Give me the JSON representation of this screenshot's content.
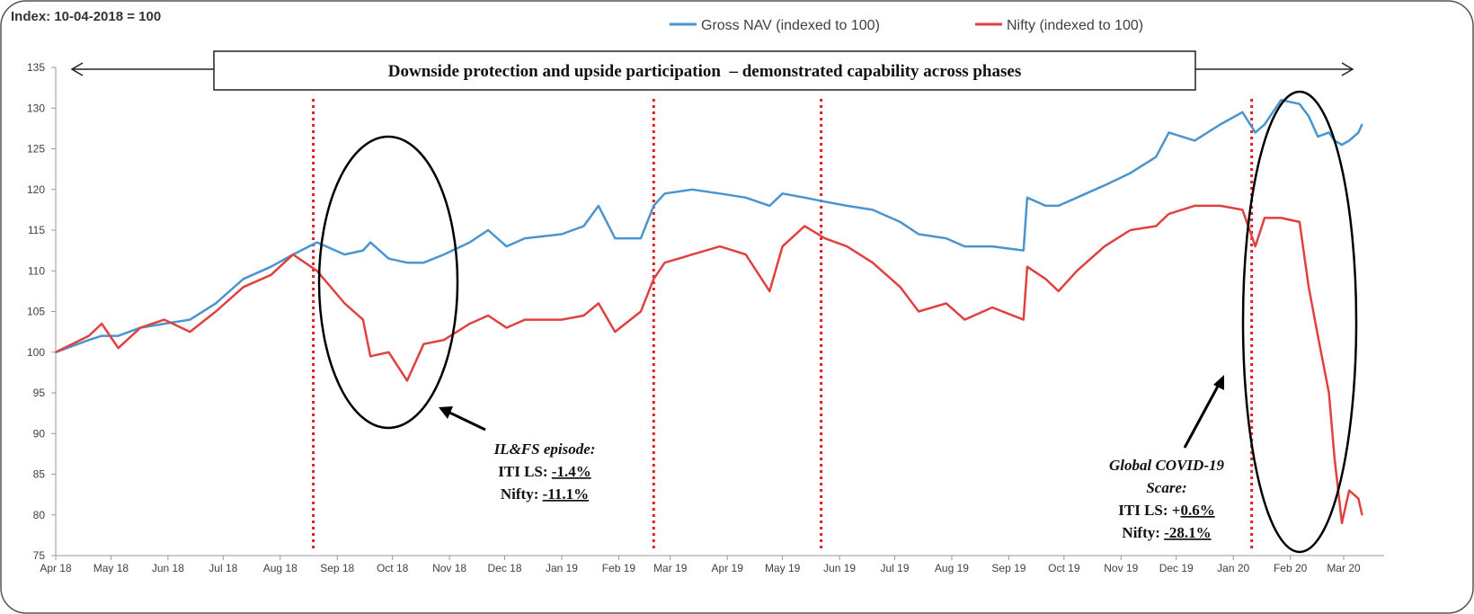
{
  "chart_data": {
    "type": "line",
    "subtitle": "Index: 10-04-2018 = 100",
    "banner": "Downside protection and upside participation  – demonstrated capability across phases",
    "ylim": [
      75,
      135
    ],
    "yticks": [
      75,
      80,
      85,
      90,
      95,
      100,
      105,
      110,
      115,
      120,
      125,
      130,
      135
    ],
    "xticks": [
      {
        "date": "2018-04-10",
        "label": "Apr 18"
      },
      {
        "date": "2018-05-10",
        "label": "May 18"
      },
      {
        "date": "2018-06-10",
        "label": "Jun 18"
      },
      {
        "date": "2018-07-10",
        "label": "Jul 18"
      },
      {
        "date": "2018-08-10",
        "label": "Aug 18"
      },
      {
        "date": "2018-09-10",
        "label": "Sep 18"
      },
      {
        "date": "2018-10-10",
        "label": "Oct 18"
      },
      {
        "date": "2018-11-10",
        "label": "Nov 18"
      },
      {
        "date": "2018-12-10",
        "label": "Dec 18"
      },
      {
        "date": "2019-01-10",
        "label": "Jan 19"
      },
      {
        "date": "2019-02-10",
        "label": "Feb 19"
      },
      {
        "date": "2019-03-10",
        "label": "Mar 19"
      },
      {
        "date": "2019-04-10",
        "label": "Apr 19"
      },
      {
        "date": "2019-05-10",
        "label": "May 19"
      },
      {
        "date": "2019-06-10",
        "label": "Jun 19"
      },
      {
        "date": "2019-07-10",
        "label": "Jul 19"
      },
      {
        "date": "2019-08-10",
        "label": "Aug 19"
      },
      {
        "date": "2019-09-10",
        "label": "Sep 19"
      },
      {
        "date": "2019-10-10",
        "label": "Oct 19"
      },
      {
        "date": "2019-11-10",
        "label": "Nov 19"
      },
      {
        "date": "2019-12-10",
        "label": "Dec 19"
      },
      {
        "date": "2020-01-10",
        "label": "Jan 20"
      },
      {
        "date": "2020-02-10",
        "label": "Feb 20"
      },
      {
        "date": "2020-03-10",
        "label": "Mar 20"
      }
    ],
    "legend_placement": "top",
    "phase_markers": [
      "2018-08-28",
      "2019-03-01",
      "2019-05-31",
      "2020-01-20"
    ],
    "x": [
      "2018-04-10",
      "2018-04-28",
      "2018-05-05",
      "2018-05-14",
      "2018-05-26",
      "2018-06-08",
      "2018-06-22",
      "2018-07-06",
      "2018-07-21",
      "2018-08-05",
      "2018-08-17",
      "2018-08-30",
      "2018-09-14",
      "2018-09-24",
      "2018-09-28",
      "2018-10-08",
      "2018-10-18",
      "2018-10-27",
      "2018-11-07",
      "2018-11-21",
      "2018-12-01",
      "2018-12-11",
      "2018-12-21",
      "2019-01-10",
      "2019-01-22",
      "2019-01-30",
      "2019-02-08",
      "2019-02-22",
      "2019-03-01",
      "2019-03-07",
      "2019-03-22",
      "2019-04-06",
      "2019-04-20",
      "2019-05-03",
      "2019-05-10",
      "2019-05-22",
      "2019-06-02",
      "2019-06-14",
      "2019-06-28",
      "2019-07-13",
      "2019-07-23",
      "2019-08-07",
      "2019-08-17",
      "2019-09-01",
      "2019-09-18",
      "2019-09-20",
      "2019-09-30",
      "2019-10-07",
      "2019-10-17",
      "2019-11-01",
      "2019-11-15",
      "2019-11-29",
      "2019-12-06",
      "2019-12-20",
      "2020-01-03",
      "2020-01-15",
      "2020-01-22",
      "2020-01-27",
      "2020-02-05",
      "2020-02-15",
      "2020-02-20",
      "2020-02-25",
      "2020-03-02",
      "2020-03-05",
      "2020-03-09",
      "2020-03-13",
      "2020-03-18",
      "2020-03-20"
    ],
    "series": [
      {
        "name": "Gross NAV (indexed to 100)",
        "color": "#4a94d0",
        "values": [
          100,
          101.5,
          102,
          102,
          103,
          103.5,
          104,
          106,
          109,
          110.5,
          112,
          113.5,
          112,
          112.5,
          113.5,
          111.5,
          111,
          111,
          112,
          113.5,
          115,
          113,
          114,
          114.5,
          115.5,
          118,
          114,
          114,
          118,
          119.5,
          120,
          119.5,
          119,
          118,
          119.5,
          119,
          118.5,
          118,
          117.5,
          116,
          114.5,
          114,
          113,
          113,
          112.5,
          119,
          118,
          118,
          119,
          120.5,
          122,
          124,
          127,
          126,
          128,
          129.5,
          127,
          128,
          131,
          130.5,
          129,
          126.5,
          127,
          126,
          125.5,
          126,
          127,
          128
        ]
      },
      {
        "name": "Nifty (indexed to 100)",
        "color": "#e0413f",
        "values": [
          100,
          102,
          103.5,
          100.5,
          103,
          104,
          102.5,
          105,
          108,
          109.5,
          112,
          110,
          106,
          104,
          99.5,
          100,
          96.5,
          101,
          101.5,
          103.5,
          104.5,
          103,
          104,
          104,
          104.5,
          106,
          102.5,
          105,
          109,
          111,
          112,
          113,
          112,
          107.5,
          113,
          115.5,
          114,
          113,
          111,
          108,
          105,
          106,
          104,
          105.5,
          104,
          110.5,
          109,
          107.5,
          110,
          113,
          115,
          115.5,
          117,
          118,
          118,
          117.5,
          113,
          116.5,
          116.5,
          116,
          108,
          102,
          95,
          87,
          79,
          83,
          82,
          80
        ]
      }
    ],
    "annotations": [
      {
        "title": "IL&FS episode:",
        "line1_label": "ITI LS: ",
        "line1_value": "-1.4%",
        "line2_label": "Nifty: ",
        "line2_value": "-11.1%"
      },
      {
        "title": "Global COVID-19",
        "title2": "Scare:",
        "line1_label": "ITI LS: +",
        "line1_value": "0.6%",
        "line2_label": "Nifty: ",
        "line2_value": "-28.1%"
      }
    ]
  }
}
